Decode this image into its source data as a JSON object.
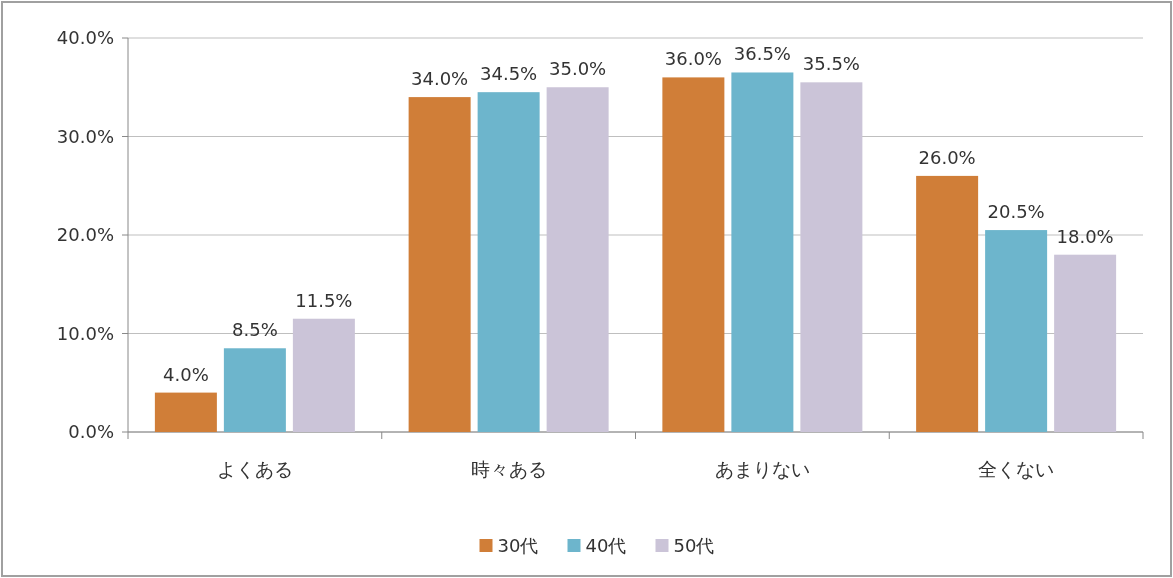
{
  "chart_data": {
    "type": "bar",
    "categories": [
      "よくある",
      "時々ある",
      "あまりない",
      "全くない"
    ],
    "series": [
      {
        "name": "30代",
        "color": "#d07e38",
        "values": [
          4.0,
          34.0,
          36.0,
          26.0
        ],
        "value_labels": [
          "4.0%",
          "34.0%",
          "36.0%",
          "26.0%"
        ]
      },
      {
        "name": "40代",
        "color": "#6db5cc",
        "values": [
          8.5,
          34.5,
          36.5,
          20.5
        ],
        "value_labels": [
          "8.5%",
          "34.5%",
          "36.5%",
          "20.5%"
        ]
      },
      {
        "name": "50代",
        "color": "#cbc4d8",
        "values": [
          11.5,
          35.0,
          35.5,
          18.0
        ],
        "value_labels": [
          "11.5%",
          "35.0%",
          "35.5%",
          "18.0%"
        ]
      }
    ],
    "ylim": [
      0,
      40
    ],
    "yticks": [
      {
        "value": 0,
        "label": "0.0%"
      },
      {
        "value": 10,
        "label": "10.0%"
      },
      {
        "value": 20,
        "label": "20.0%"
      },
      {
        "value": 30,
        "label": "30.0%"
      },
      {
        "value": 40,
        "label": "40.0%"
      }
    ],
    "grid": "y",
    "legend": "bottom"
  }
}
